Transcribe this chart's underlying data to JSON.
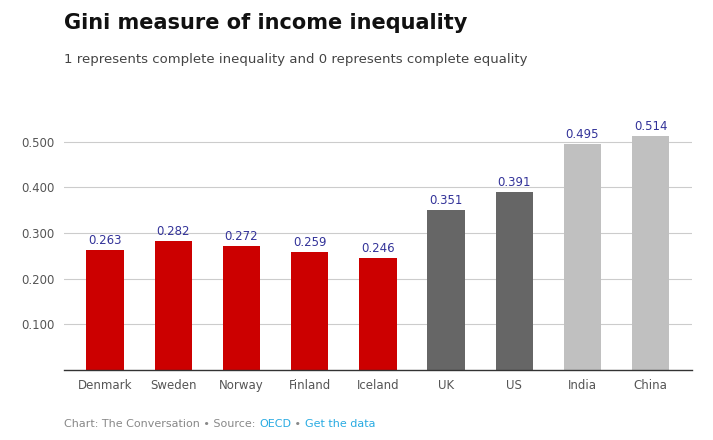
{
  "categories": [
    "Denmark",
    "Sweden",
    "Norway",
    "Finland",
    "Iceland",
    "UK",
    "US",
    "India",
    "China"
  ],
  "values": [
    0.263,
    0.282,
    0.272,
    0.259,
    0.246,
    0.351,
    0.391,
    0.495,
    0.514
  ],
  "bar_colors": [
    "#cc0000",
    "#cc0000",
    "#cc0000",
    "#cc0000",
    "#cc0000",
    "#666666",
    "#666666",
    "#c0c0c0",
    "#c0c0c0"
  ],
  "title": "Gini measure of income inequality",
  "subtitle": "1 represents complete inequality and 0 represents complete equality",
  "footer_plain": "Chart: The Conversation • Source: ",
  "footer_link1": "OECD",
  "footer_mid": " • ",
  "footer_link2": "Get the data",
  "ylim": [
    0,
    0.57
  ],
  "yticks": [
    0.1,
    0.2,
    0.3,
    0.4,
    0.5
  ],
  "background_color": "#ffffff",
  "title_fontsize": 15,
  "subtitle_fontsize": 9.5,
  "label_fontsize": 8.5,
  "tick_label_fontsize": 8.5,
  "footer_fontsize": 8,
  "label_color": "#333399",
  "tick_color": "#555555",
  "grid_color": "#cccccc",
  "spine_color": "#333333",
  "footer_plain_color": "#888888",
  "footer_link_color": "#29abe2"
}
